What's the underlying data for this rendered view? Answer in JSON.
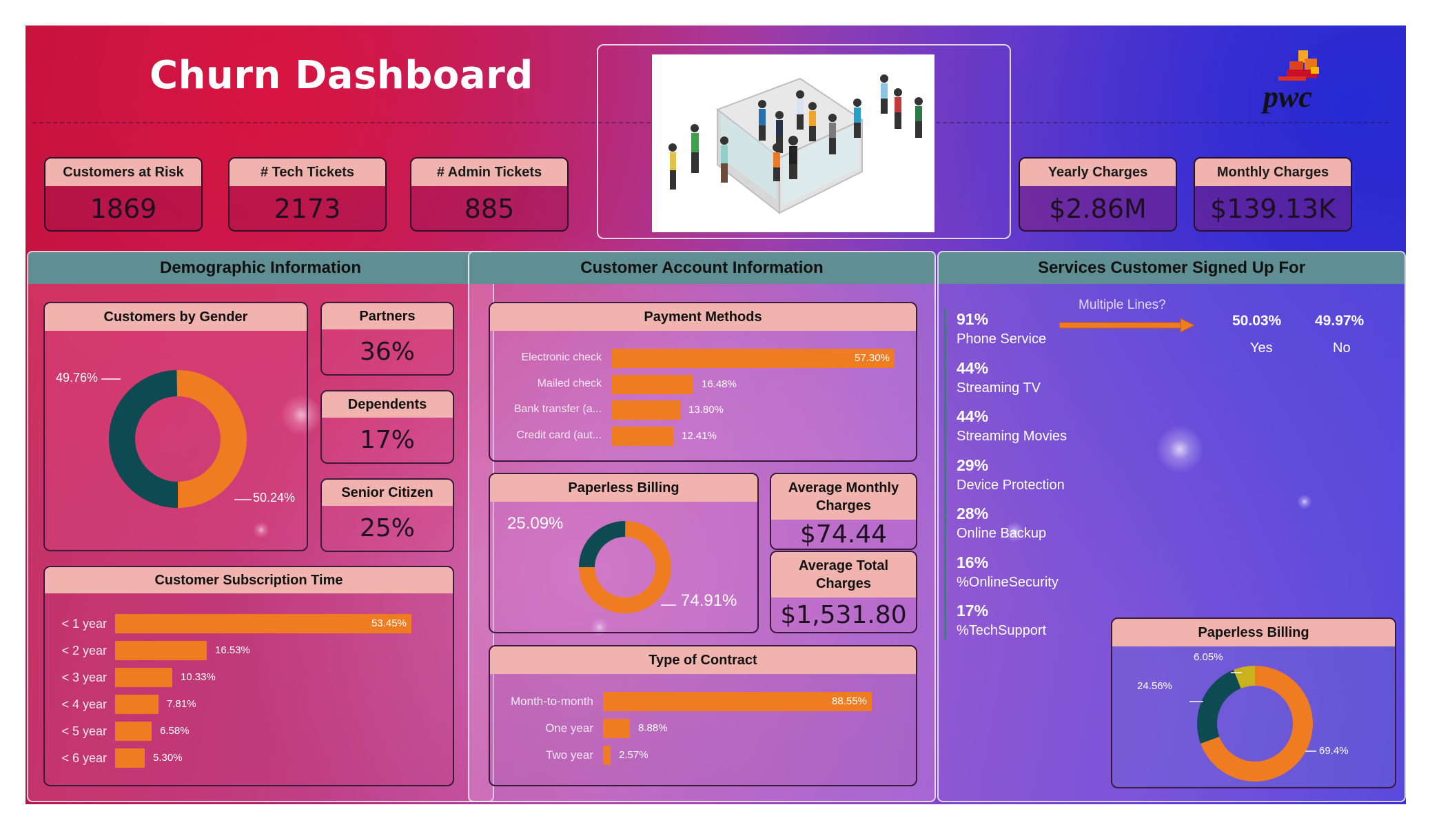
{
  "header": {
    "title": "Churn Dashboard",
    "logo_text": "pwc"
  },
  "kpis": {
    "customers_at_risk": {
      "label": "Customers at Risk",
      "value": "1869"
    },
    "tech_tickets": {
      "label": "# Tech Tickets",
      "value": "2173"
    },
    "admin_tickets": {
      "label": "# Admin Tickets",
      "value": "885"
    },
    "yearly_charges": {
      "label": "Yearly Charges",
      "value": "$2.86M"
    },
    "monthly_charges": {
      "label": "Monthly Charges",
      "value": "$139.13K"
    }
  },
  "demographic": {
    "title": "Demographic Information",
    "gender": {
      "title": "Customers by Gender",
      "label_a": "49.76%",
      "label_b": "50.24%"
    },
    "partners": {
      "label": "Partners",
      "value": "36%"
    },
    "dependents": {
      "label": "Dependents",
      "value": "17%"
    },
    "senior": {
      "label": "Senior Citizen",
      "value": "25%"
    },
    "subscription": {
      "title": "Customer Subscription Time",
      "rows": [
        {
          "label": "< 1 year",
          "value": "53.45%"
        },
        {
          "label": "< 2 year",
          "value": "16.53%"
        },
        {
          "label": "< 3 year",
          "value": "10.33%"
        },
        {
          "label": "< 4 year",
          "value": "7.81%"
        },
        {
          "label": "< 5 year",
          "value": "6.58%"
        },
        {
          "label": "< 6 year",
          "value": "5.30%"
        }
      ]
    }
  },
  "account": {
    "title": "Customer Account Information",
    "payment": {
      "title": "Payment Methods",
      "rows": [
        {
          "label": "Electronic check",
          "value": "57.30%"
        },
        {
          "label": "Mailed check",
          "value": "16.48%"
        },
        {
          "label": "Bank transfer (a...",
          "value": "13.80%"
        },
        {
          "label": "Credit card (aut...",
          "value": "12.41%"
        }
      ]
    },
    "paperless": {
      "title": "Paperless Billing",
      "label_a": "25.09%",
      "label_b": "74.91%"
    },
    "avg_monthly": {
      "label": "Average Monthly Charges",
      "value": "$74.44"
    },
    "avg_total": {
      "label": "Average Total Charges",
      "value": "$1,531.80"
    },
    "contract": {
      "title": "Type of Contract",
      "rows": [
        {
          "label": "Month-to-month",
          "value": "88.55%"
        },
        {
          "label": "One year",
          "value": "8.88%"
        },
        {
          "label": "Two year",
          "value": "2.57%"
        }
      ]
    }
  },
  "services": {
    "title": "Services Customer Signed Up For",
    "multiple_lines": {
      "label": "Multiple Lines?",
      "yes_pct": "50.03%",
      "no_pct": "49.97%",
      "yes": "Yes",
      "no": "No"
    },
    "items": [
      {
        "pct": "91%",
        "name": "Phone Service"
      },
      {
        "pct": "44%",
        "name": "Streaming TV"
      },
      {
        "pct": "44%",
        "name": "Streaming Movies"
      },
      {
        "pct": "29%",
        "name": "Device Protection"
      },
      {
        "pct": "28%",
        "name": "Online Backup"
      },
      {
        "pct": "16%",
        "name": "%OnlineSecurity"
      },
      {
        "pct": "17%",
        "name": "%TechSupport"
      }
    ],
    "paperless": {
      "title": "Paperless Billing",
      "label_a": "6.05%",
      "label_b": "24.56%",
      "label_c": "69.4%"
    }
  },
  "chart_data": [
    {
      "type": "pie",
      "title": "Customers by Gender",
      "values": [
        49.76,
        50.24
      ],
      "colors": [
        "#0e4a52",
        "#f07c22"
      ]
    },
    {
      "type": "bar",
      "title": "Customer Subscription Time",
      "categories": [
        "< 1 year",
        "< 2 year",
        "< 3 year",
        "< 4 year",
        "< 5 year",
        "< 6 year"
      ],
      "values": [
        53.45,
        16.53,
        10.33,
        7.81,
        6.58,
        5.3
      ]
    },
    {
      "type": "bar",
      "title": "Payment Methods",
      "categories": [
        "Electronic check",
        "Mailed check",
        "Bank transfer (a...",
        "Credit card (aut..."
      ],
      "values": [
        57.3,
        16.48,
        13.8,
        12.41
      ]
    },
    {
      "type": "pie",
      "title": "Paperless Billing",
      "values": [
        25.09,
        74.91
      ],
      "colors": [
        "#0e4a52",
        "#f07c22"
      ]
    },
    {
      "type": "bar",
      "title": "Type of Contract",
      "categories": [
        "Month-to-month",
        "One year",
        "Two year"
      ],
      "values": [
        88.55,
        8.88,
        2.57
      ]
    },
    {
      "type": "pie",
      "title": "Paperless Billing",
      "values": [
        6.05,
        24.56,
        69.4
      ],
      "colors": [
        "#c9b21c",
        "#0e4a52",
        "#f07c22"
      ]
    }
  ],
  "colors": {
    "orange": "#f07c22",
    "teal": "#0e4a52",
    "yellow": "#c9b21c",
    "header_pink": "#f0b3ad",
    "section_head": "#5f8f93"
  }
}
